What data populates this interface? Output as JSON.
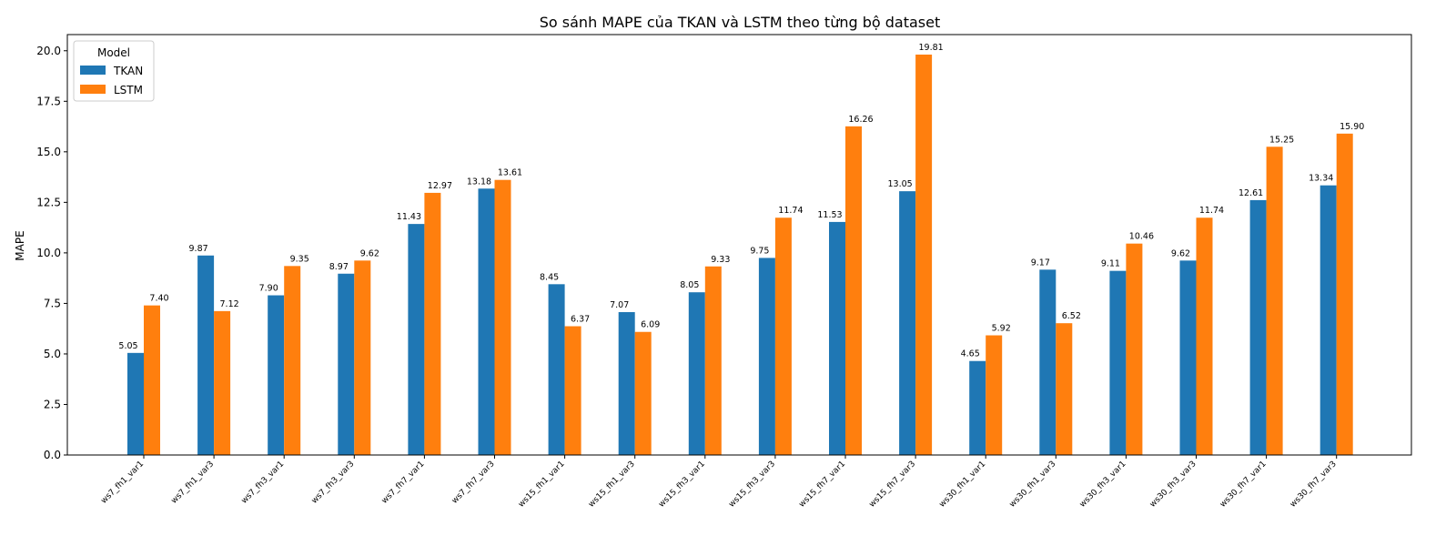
{
  "chart_data": {
    "type": "bar",
    "title": "So sánh MAPE của TKAN và LSTM theo từng bộ dataset",
    "xlabel": "",
    "ylabel": "MAPE",
    "ylim": [
      0,
      20.8
    ],
    "yticks": [
      "0.0",
      "2.5",
      "5.0",
      "7.5",
      "10.0",
      "12.5",
      "15.0",
      "17.5",
      "20.0"
    ],
    "grid": false,
    "legend": {
      "title": "Model",
      "placement": "top-left"
    },
    "categories": [
      "ws7_fh1_var1",
      "ws7_fh1_var3",
      "ws7_fh3_var1",
      "ws7_fh3_var3",
      "ws7_fh7_var1",
      "ws7_fh7_var3",
      "ws15_fh1_var1",
      "ws15_fh1_var3",
      "ws15_fh3_var1",
      "ws15_fh3_var3",
      "ws15_fh7_var1",
      "ws15_fh7_var3",
      "ws30_fh1_var1",
      "ws30_fh1_var3",
      "ws30_fh3_var1",
      "ws30_fh3_var3",
      "ws30_fh7_var1",
      "ws30_fh7_var3"
    ],
    "series": [
      {
        "name": "TKAN",
        "color": "#1f77b4",
        "values": [
          5.05,
          9.87,
          7.9,
          8.97,
          11.43,
          13.18,
          8.45,
          7.07,
          8.05,
          9.75,
          11.53,
          13.05,
          4.65,
          9.17,
          9.11,
          9.62,
          12.61,
          13.34
        ],
        "labels": [
          "5.05",
          "9.87",
          "7.90",
          "8.97",
          "11.43",
          "13.18",
          "8.45",
          "7.07",
          "8.05",
          "9.75",
          "11.53",
          "13.05",
          "4.65",
          "9.17",
          "9.11",
          "9.62",
          "12.61",
          "13.34"
        ]
      },
      {
        "name": "LSTM",
        "color": "#ff7f0e",
        "values": [
          7.4,
          7.12,
          9.35,
          9.62,
          12.97,
          13.61,
          6.37,
          6.09,
          9.33,
          11.74,
          16.26,
          19.81,
          5.92,
          6.52,
          10.46,
          11.74,
          15.25,
          15.9
        ],
        "labels": [
          "7.40",
          "7.12",
          "9.35",
          "9.62",
          "12.97",
          "13.61",
          "6.37",
          "6.09",
          "9.33",
          "11.74",
          "16.26",
          "19.81",
          "5.92",
          "6.52",
          "10.46",
          "11.74",
          "15.25",
          "15.90"
        ]
      }
    ]
  }
}
